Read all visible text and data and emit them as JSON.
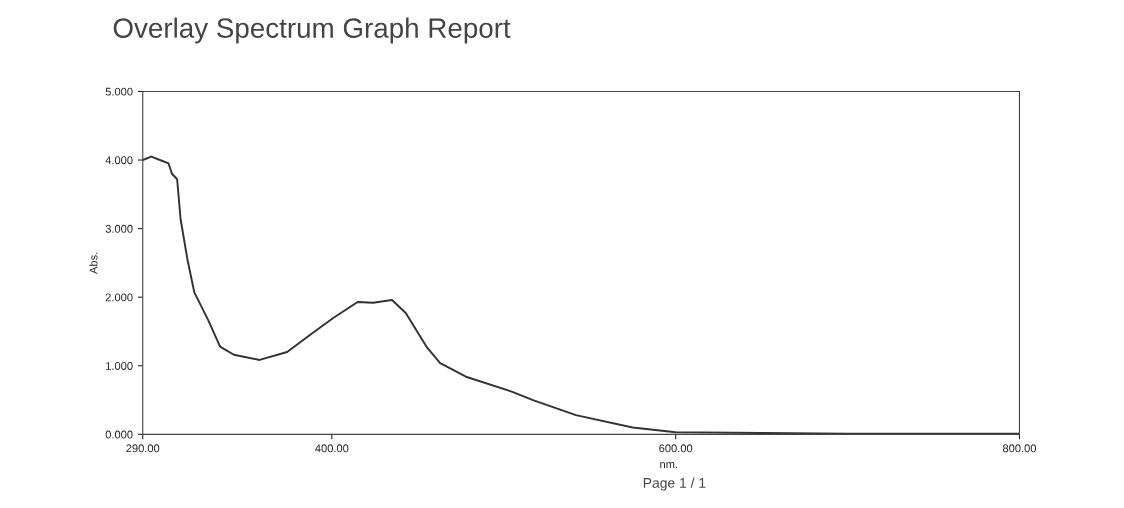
{
  "chart_data": {
    "type": "line",
    "title": "Overlay Spectrum Graph Report",
    "xlabel": "nm.",
    "ylabel": "Abs.",
    "annotations": [
      "Page 1 / 1"
    ],
    "x": [
      290,
      295,
      300,
      305,
      307,
      310,
      312,
      316,
      320,
      328,
      335,
      343,
      358,
      374,
      389,
      401,
      415,
      424,
      435,
      443,
      455,
      463,
      478,
      505,
      517,
      542,
      575,
      600,
      650,
      700,
      800
    ],
    "series": [
      {
        "color": "#333333",
        "values": [
          4.0,
          4.05,
          4.0,
          3.95,
          3.8,
          3.72,
          3.14,
          2.55,
          2.07,
          1.67,
          1.28,
          1.16,
          1.085,
          1.2,
          1.48,
          1.7,
          1.93,
          1.92,
          1.96,
          1.77,
          1.28,
          1.04,
          0.84,
          0.62,
          0.5,
          0.28,
          0.1,
          0.03,
          0.02,
          0.01,
          0.01
        ]
      }
    ],
    "xlim": [
      290,
      800
    ],
    "xticks": [
      {
        "value": 290,
        "label": "290.00"
      },
      {
        "value": 400,
        "label": "400.00"
      },
      {
        "value": 600,
        "label": "600.00"
      },
      {
        "value": 800,
        "label": "800.00"
      }
    ],
    "ylim": [
      0,
      5
    ],
    "yticks": [
      {
        "value": 0,
        "label": "0.000"
      },
      {
        "value": 1,
        "label": "1.000"
      },
      {
        "value": 2,
        "label": "2.000"
      },
      {
        "value": 3,
        "label": "3.000"
      },
      {
        "value": 4,
        "label": "4.000"
      },
      {
        "value": 5,
        "label": "5.000"
      }
    ],
    "grid": false,
    "legend": false
  }
}
